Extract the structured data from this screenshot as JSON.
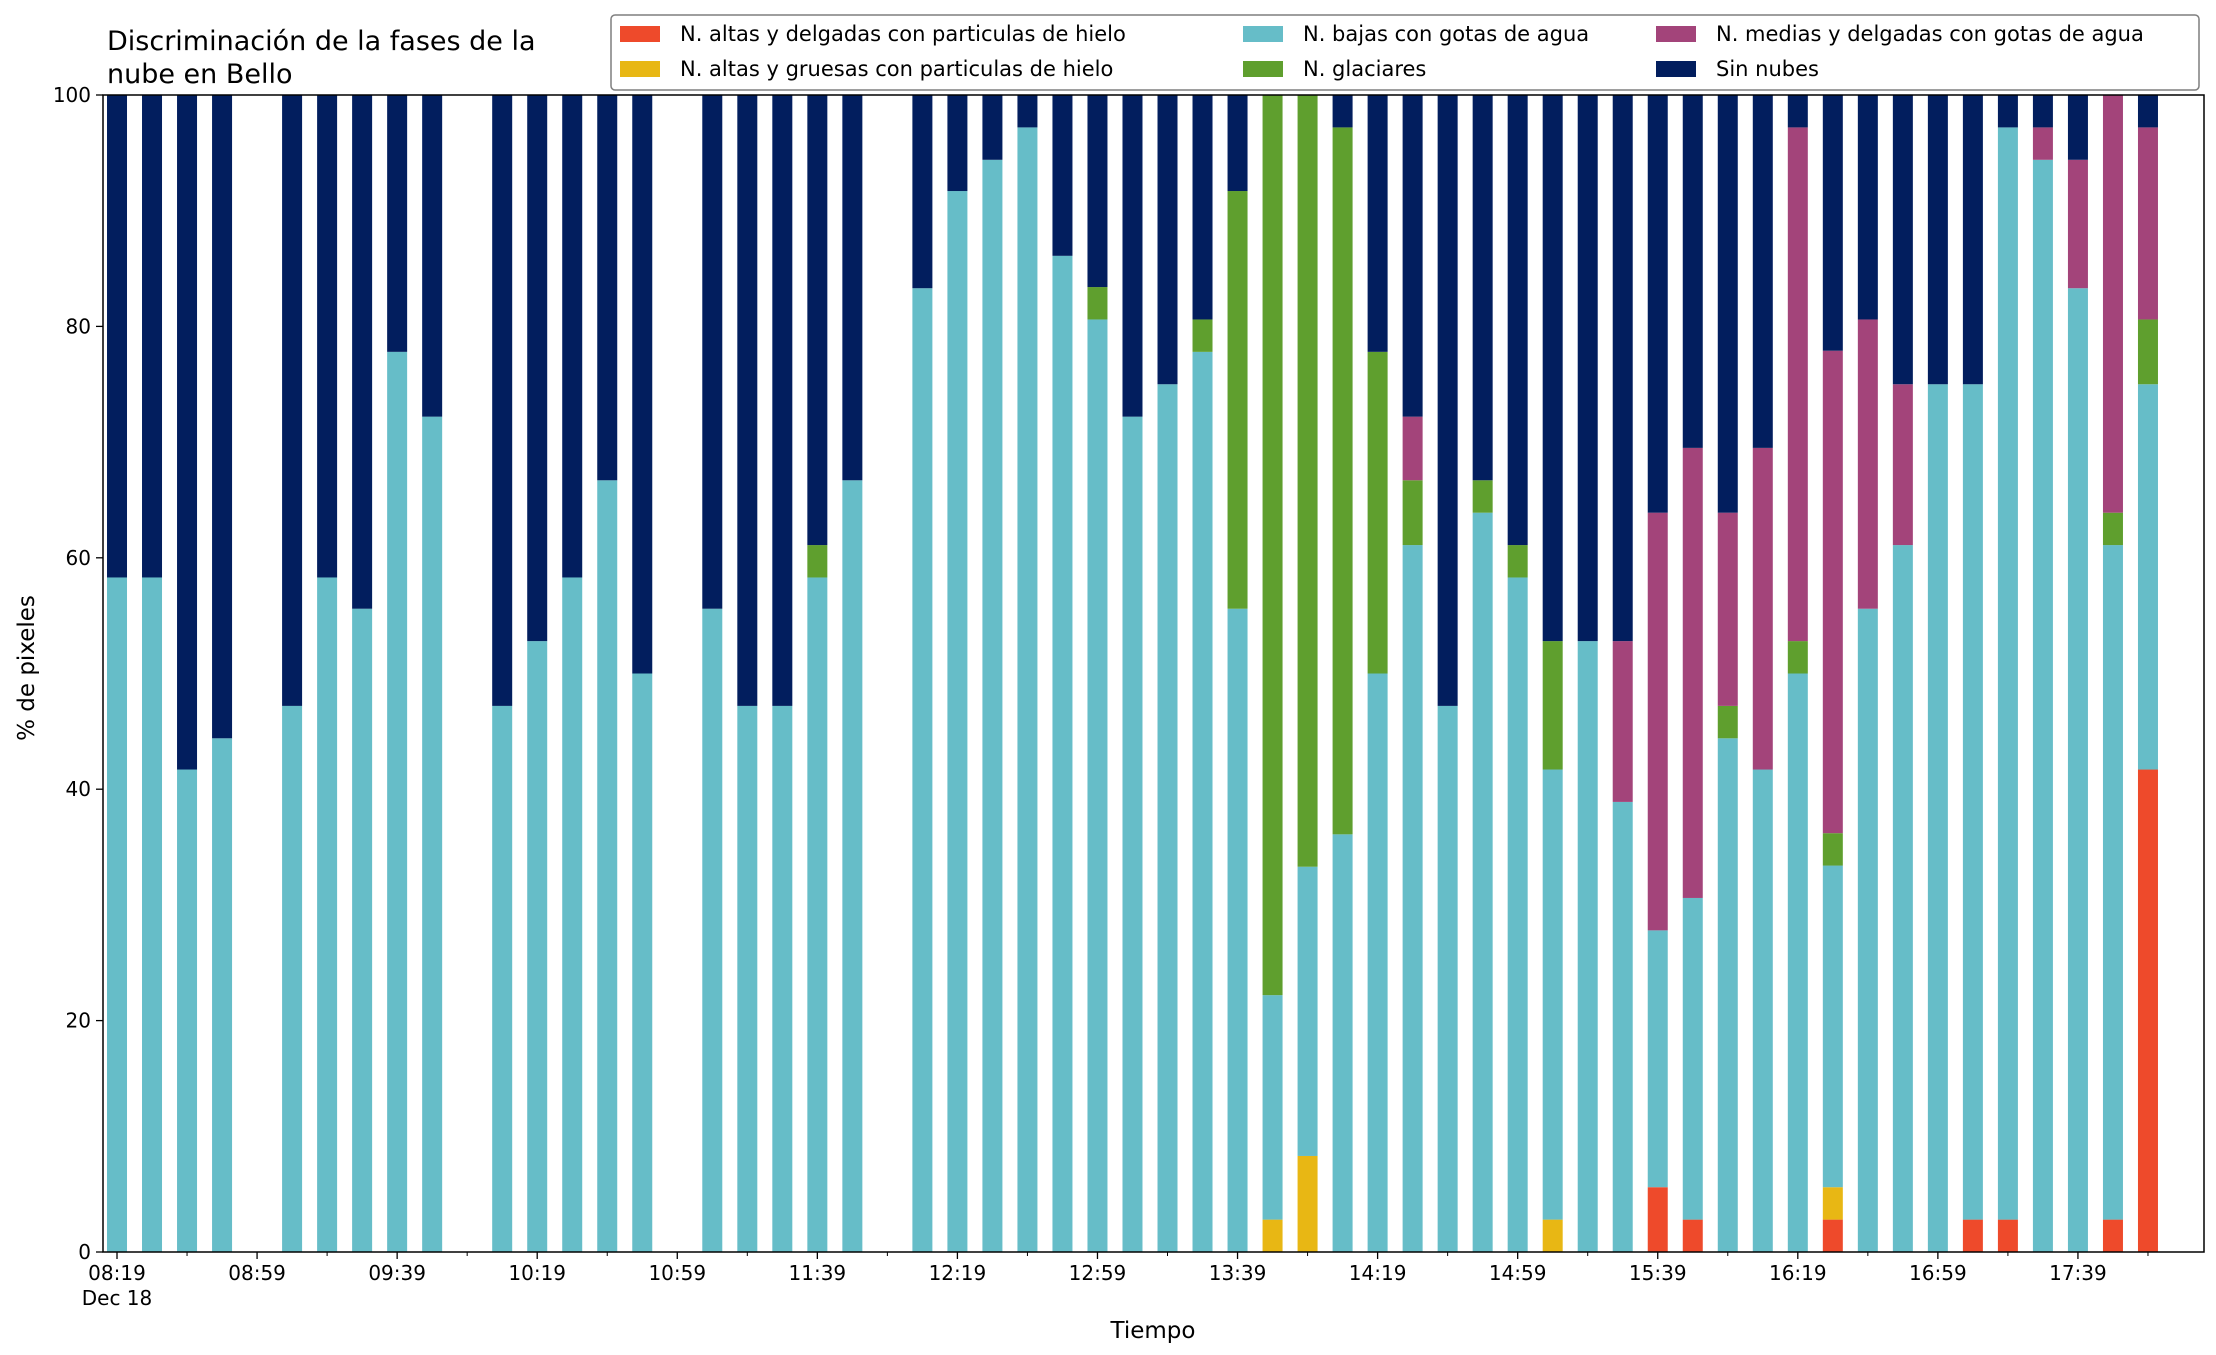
{
  "chart_data": {
    "type": "bar",
    "stacked": true,
    "title": "Discriminación de la fases de la\nnube en Bello",
    "xlabel": "Tiempo",
    "ylabel": "% de pixeles",
    "ylim": [
      0,
      100
    ],
    "yticks": [
      0,
      20,
      40,
      60,
      80,
      100
    ],
    "xlim": [
      "08:15",
      "18:15"
    ],
    "x_tick_labels": [
      {
        "time": "08:19",
        "label": "08:19",
        "sublabel": "Dec 18"
      },
      {
        "time": "08:59",
        "label": "08:59"
      },
      {
        "time": "09:39",
        "label": "09:39"
      },
      {
        "time": "10:19",
        "label": "10:19"
      },
      {
        "time": "10:59",
        "label": "10:59"
      },
      {
        "time": "11:39",
        "label": "11:39"
      },
      {
        "time": "12:19",
        "label": "12:19"
      },
      {
        "time": "12:59",
        "label": "12:59"
      },
      {
        "time": "13:39",
        "label": "13:39"
      },
      {
        "time": "14:19",
        "label": "14:19"
      },
      {
        "time": "14:59",
        "label": "14:59"
      },
      {
        "time": "15:39",
        "label": "15:39"
      },
      {
        "time": "16:19",
        "label": "16:19"
      },
      {
        "time": "16:59",
        "label": "16:59"
      },
      {
        "time": "17:39",
        "label": "17:39"
      }
    ],
    "grid": false,
    "legend_position": "top-right",
    "series": [
      {
        "name": "N. altas y delgadas con particulas de hielo",
        "color": "#ee4a2b"
      },
      {
        "name": "N. altas y gruesas con particulas de hielo",
        "color": "#e8b714"
      },
      {
        "name": "N. bajas con gotas de agua",
        "color": "#66bdc8"
      },
      {
        "name": "N. glaciares",
        "color": "#5f9f2e"
      },
      {
        "name": "N. medias y delgadas con gotas de agua",
        "color": "#a3447a"
      },
      {
        "name": "Sin nubes",
        "color": "#021e5e"
      }
    ],
    "bars": [
      {
        "time": "08:19",
        "values": [
          0,
          0,
          58.3,
          0,
          0,
          41.7
        ]
      },
      {
        "time": "08:29",
        "values": [
          0,
          0,
          58.3,
          0,
          0,
          41.7
        ]
      },
      {
        "time": "08:39",
        "values": [
          0,
          0,
          41.7,
          0,
          0,
          58.3
        ]
      },
      {
        "time": "08:49",
        "values": [
          0,
          0,
          44.4,
          0,
          0,
          55.6
        ]
      },
      {
        "time": "09:09",
        "values": [
          0,
          0,
          47.2,
          0,
          0,
          52.8
        ]
      },
      {
        "time": "09:19",
        "values": [
          0,
          0,
          58.3,
          0,
          0,
          41.7
        ]
      },
      {
        "time": "09:29",
        "values": [
          0,
          0,
          55.6,
          0,
          0,
          44.4
        ]
      },
      {
        "time": "09:39",
        "values": [
          0,
          0,
          77.8,
          0,
          0,
          22.2
        ]
      },
      {
        "time": "09:49",
        "values": [
          0,
          0,
          72.2,
          0,
          0,
          27.8
        ]
      },
      {
        "time": "10:09",
        "values": [
          0,
          0,
          47.2,
          0,
          0,
          52.8
        ]
      },
      {
        "time": "10:19",
        "values": [
          0,
          0,
          52.8,
          0,
          0,
          47.2
        ]
      },
      {
        "time": "10:29",
        "values": [
          0,
          0,
          58.3,
          0,
          0,
          41.7
        ]
      },
      {
        "time": "10:39",
        "values": [
          0,
          0,
          66.7,
          0,
          0,
          33.3
        ]
      },
      {
        "time": "10:49",
        "values": [
          0,
          0,
          50.0,
          0,
          0,
          50.0
        ]
      },
      {
        "time": "11:09",
        "values": [
          0,
          0,
          55.6,
          0,
          0,
          44.4
        ]
      },
      {
        "time": "11:19",
        "values": [
          0,
          0,
          47.2,
          0,
          0,
          52.8
        ]
      },
      {
        "time": "11:29",
        "values": [
          0,
          0,
          47.2,
          0,
          0,
          52.8
        ]
      },
      {
        "time": "11:39",
        "values": [
          0,
          0,
          58.3,
          2.8,
          0,
          38.9
        ]
      },
      {
        "time": "11:49",
        "values": [
          0,
          0,
          66.7,
          0,
          0,
          33.3
        ]
      },
      {
        "time": "12:09",
        "values": [
          0,
          0,
          83.3,
          0,
          0,
          16.7
        ]
      },
      {
        "time": "12:19",
        "values": [
          0,
          0,
          91.7,
          0,
          0,
          8.3
        ]
      },
      {
        "time": "12:29",
        "values": [
          0,
          0,
          94.4,
          0,
          0,
          5.6
        ]
      },
      {
        "time": "12:39",
        "values": [
          0,
          0,
          97.2,
          0,
          0,
          2.8
        ]
      },
      {
        "time": "12:49",
        "values": [
          0,
          0,
          86.1,
          0,
          0,
          13.9
        ]
      },
      {
        "time": "12:59",
        "values": [
          0,
          0,
          80.6,
          2.8,
          0,
          16.6
        ]
      },
      {
        "time": "13:09",
        "values": [
          0,
          0,
          72.2,
          0,
          0,
          27.8
        ]
      },
      {
        "time": "13:19",
        "values": [
          0,
          0,
          75.0,
          0,
          0,
          25.0
        ]
      },
      {
        "time": "13:29",
        "values": [
          0,
          0,
          77.8,
          2.8,
          0,
          19.4
        ]
      },
      {
        "time": "13:39",
        "values": [
          0,
          0,
          55.6,
          36.1,
          0,
          8.3
        ]
      },
      {
        "time": "13:49",
        "values": [
          0,
          2.8,
          19.4,
          77.8,
          0,
          0
        ]
      },
      {
        "time": "13:59",
        "values": [
          0,
          8.3,
          25.0,
          66.7,
          0,
          0
        ]
      },
      {
        "time": "14:09",
        "values": [
          0,
          0,
          36.1,
          61.1,
          0,
          2.8
        ]
      },
      {
        "time": "14:19",
        "values": [
          0,
          0,
          50.0,
          27.8,
          0,
          22.2
        ]
      },
      {
        "time": "14:29",
        "values": [
          0,
          0,
          61.1,
          5.6,
          5.5,
          27.8
        ]
      },
      {
        "time": "14:39",
        "values": [
          0,
          0,
          47.2,
          0,
          0,
          52.8
        ]
      },
      {
        "time": "14:49",
        "values": [
          0,
          0,
          63.9,
          2.8,
          0,
          33.3
        ]
      },
      {
        "time": "14:59",
        "values": [
          0,
          0,
          58.3,
          2.8,
          0,
          38.9
        ]
      },
      {
        "time": "15:09",
        "values": [
          0,
          2.8,
          38.9,
          11.1,
          0,
          47.2
        ]
      },
      {
        "time": "15:19",
        "values": [
          0,
          0,
          52.8,
          0,
          0,
          47.2
        ]
      },
      {
        "time": "15:29",
        "values": [
          0,
          0,
          38.9,
          0,
          13.9,
          47.2
        ]
      },
      {
        "time": "15:39",
        "values": [
          5.6,
          0,
          22.2,
          0,
          36.1,
          36.1
        ]
      },
      {
        "time": "15:49",
        "values": [
          2.8,
          0,
          27.8,
          0,
          38.9,
          30.5
        ]
      },
      {
        "time": "15:59",
        "values": [
          0,
          0,
          44.4,
          2.8,
          16.7,
          36.1
        ]
      },
      {
        "time": "16:09",
        "values": [
          0,
          0,
          41.7,
          0,
          27.8,
          30.5
        ]
      },
      {
        "time": "16:19",
        "values": [
          0,
          0,
          50.0,
          2.8,
          44.4,
          2.8
        ]
      },
      {
        "time": "16:29",
        "values": [
          2.8,
          2.8,
          27.8,
          2.8,
          41.7,
          22.1
        ]
      },
      {
        "time": "16:39",
        "values": [
          0,
          0,
          55.6,
          0,
          25.0,
          19.4
        ]
      },
      {
        "time": "16:49",
        "values": [
          0,
          0,
          61.1,
          0,
          13.9,
          25.0
        ]
      },
      {
        "time": "16:59",
        "values": [
          0,
          0,
          75.0,
          0,
          0,
          25.0
        ]
      },
      {
        "time": "17:09",
        "values": [
          2.8,
          0,
          72.2,
          0,
          0,
          25.0
        ]
      },
      {
        "time": "17:19",
        "values": [
          2.8,
          0,
          94.4,
          0,
          0,
          2.8
        ]
      },
      {
        "time": "17:29",
        "values": [
          0,
          0,
          94.4,
          0,
          2.8,
          2.8
        ]
      },
      {
        "time": "17:39",
        "values": [
          0,
          0,
          83.3,
          0,
          11.1,
          5.6
        ]
      },
      {
        "time": "17:49",
        "values": [
          2.8,
          0,
          58.3,
          2.8,
          36.1,
          0
        ]
      },
      {
        "time": "17:59",
        "values": [
          41.7,
          0,
          33.3,
          5.6,
          16.6,
          2.8
        ]
      }
    ]
  }
}
